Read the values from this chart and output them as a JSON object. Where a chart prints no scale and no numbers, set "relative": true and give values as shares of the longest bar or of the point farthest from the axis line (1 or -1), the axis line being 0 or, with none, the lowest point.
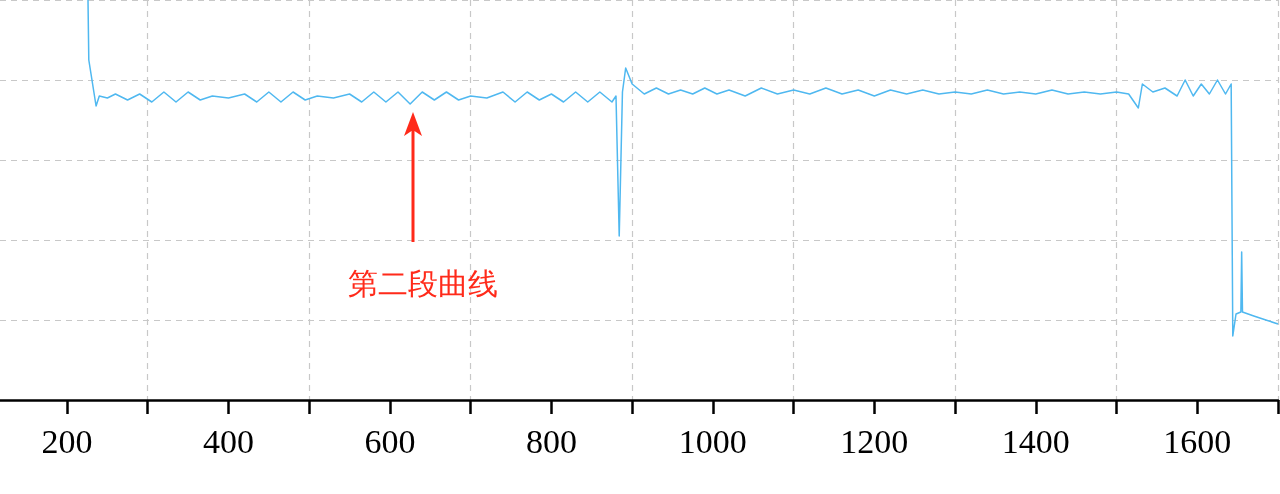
{
  "chart_data": {
    "type": "line",
    "relative": true,
    "grid": true,
    "marker": "none",
    "line_style": "solid",
    "xlim": [
      117,
      1700
    ],
    "xticks": [
      200,
      {
        "value": 300,
        "label": null
      },
      400,
      {
        "value": 500,
        "label": null
      },
      600,
      {
        "value": 700,
        "label": null
      },
      800,
      {
        "value": 900,
        "label": null
      },
      1000,
      {
        "value": 1100,
        "label": null
      },
      1200,
      {
        "value": 1300,
        "label": null
      },
      1400,
      {
        "value": 1500,
        "label": null
      },
      1600,
      {
        "value": 1700,
        "label": null
      }
    ],
    "annotations": [
      "第二段曲线"
    ],
    "series": [
      {
        "color": "#4fb8f0",
        "x": [
          226,
          227,
          236,
          240,
          250,
          260,
          275,
          290,
          305,
          320,
          335,
          350,
          365,
          380,
          400,
          420,
          435,
          450,
          465,
          480,
          495,
          510,
          530,
          550,
          565,
          580,
          595,
          610,
          625,
          640,
          655,
          670,
          685,
          700,
          720,
          740,
          755,
          770,
          785,
          800,
          815,
          830,
          845,
          860,
          875,
          880,
          884,
          888,
          892,
          900,
          915,
          930,
          945,
          960,
          975,
          990,
          1005,
          1020,
          1040,
          1060,
          1080,
          1100,
          1120,
          1140,
          1160,
          1180,
          1200,
          1220,
          1240,
          1260,
          1280,
          1300,
          1320,
          1340,
          1360,
          1380,
          1400,
          1420,
          1440,
          1460,
          1480,
          1500,
          1515,
          1527,
          1532,
          1545,
          1560,
          1575,
          1585,
          1595,
          1605,
          1615,
          1625,
          1635,
          1642,
          1644,
          1648,
          1654,
          1655,
          1656,
          1670,
          1685,
          1700
        ],
        "values": [
          1,
          0.85,
          0.735,
          0.76,
          0.755,
          0.765,
          0.75,
          0.765,
          0.745,
          0.77,
          0.745,
          0.77,
          0.75,
          0.76,
          0.755,
          0.765,
          0.745,
          0.77,
          0.745,
          0.77,
          0.75,
          0.76,
          0.755,
          0.765,
          0.745,
          0.77,
          0.745,
          0.77,
          0.74,
          0.77,
          0.75,
          0.77,
          0.75,
          0.76,
          0.755,
          0.77,
          0.745,
          0.77,
          0.75,
          0.765,
          0.745,
          0.77,
          0.745,
          0.77,
          0.745,
          0.76,
          0.41,
          0.77,
          0.83,
          0.79,
          0.765,
          0.78,
          0.765,
          0.775,
          0.765,
          0.78,
          0.765,
          0.775,
          0.76,
          0.78,
          0.765,
          0.775,
          0.765,
          0.78,
          0.765,
          0.775,
          0.76,
          0.775,
          0.765,
          0.775,
          0.765,
          0.77,
          0.765,
          0.775,
          0.765,
          0.77,
          0.765,
          0.775,
          0.765,
          0.77,
          0.765,
          0.77,
          0.765,
          0.73,
          0.79,
          0.77,
          0.78,
          0.76,
          0.8,
          0.76,
          0.79,
          0.765,
          0.8,
          0.765,
          0.79,
          0.16,
          0.215,
          0.22,
          0.37,
          0.22,
          0.21,
          0.2,
          0.19
        ]
      }
    ]
  }
}
